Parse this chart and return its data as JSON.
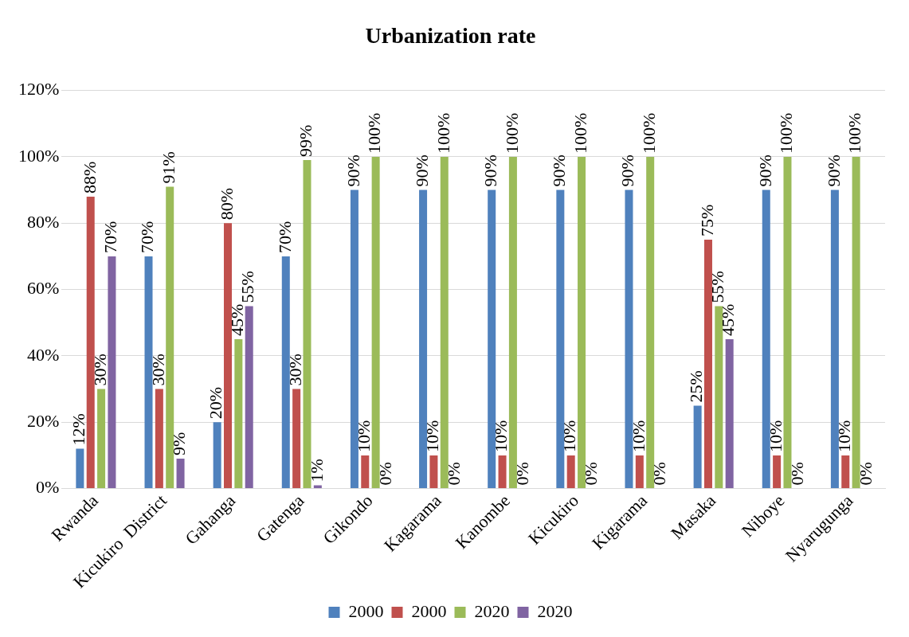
{
  "chart_data": {
    "type": "bar",
    "title": "Urbanization rate",
    "categories": [
      "Rwanda",
      "Kicukiro  District",
      "Gahanga",
      "Gatenga",
      "Gikondo",
      "Kagarama",
      "Kanombe",
      "Kicukiro",
      "Kigarama",
      "Masaka",
      "Niboye",
      "Nyarugunga"
    ],
    "series": [
      {
        "name": "2000",
        "color": "#4f81bd",
        "values": [
          12,
          70,
          20,
          70,
          90,
          90,
          90,
          90,
          90,
          25,
          90,
          90
        ],
        "value_labels": [
          "12%",
          "70%",
          "20%",
          "70%",
          "90%",
          "90%",
          "90%",
          "90%",
          "90%",
          "25%",
          "90%",
          "90%"
        ]
      },
      {
        "name": "2000",
        "color": "#c0504d",
        "values": [
          88,
          30,
          80,
          30,
          10,
          10,
          10,
          10,
          10,
          75,
          10,
          10
        ],
        "value_labels": [
          "88%",
          "30%",
          "80%",
          "30%",
          "10%",
          "10%",
          "10%",
          "10%",
          "10%",
          "75%",
          "10%",
          "10%"
        ]
      },
      {
        "name": "2020",
        "color": "#9bbb59",
        "values": [
          30,
          91,
          45,
          99,
          100,
          100,
          100,
          100,
          100,
          55,
          100,
          100
        ],
        "value_labels": [
          "30%",
          "91%",
          "45%",
          "99%",
          "100%",
          "100%",
          "100%",
          "100%",
          "100%",
          "55%",
          "100%",
          "100%"
        ]
      },
      {
        "name": "2020",
        "color": "#8064a2",
        "values": [
          70,
          9,
          55,
          1,
          0,
          0,
          0,
          0,
          0,
          45,
          0,
          0
        ],
        "value_labels": [
          "70%",
          "9%",
          "55%",
          "1%",
          "0%",
          "0%",
          "0%",
          "0%",
          "0%",
          "45%",
          "0%",
          "0%"
        ]
      }
    ],
    "ylim": [
      0,
      120
    ],
    "yticks": [
      {
        "value": 0,
        "label": "0%"
      },
      {
        "value": 20,
        "label": "20%"
      },
      {
        "value": 40,
        "label": "40%"
      },
      {
        "value": 60,
        "label": "60%"
      },
      {
        "value": 80,
        "label": "80%"
      },
      {
        "value": 100,
        "label": "100%"
      },
      {
        "value": 120,
        "label": "120%"
      }
    ],
    "grid": "y",
    "legend": "bottom"
  }
}
